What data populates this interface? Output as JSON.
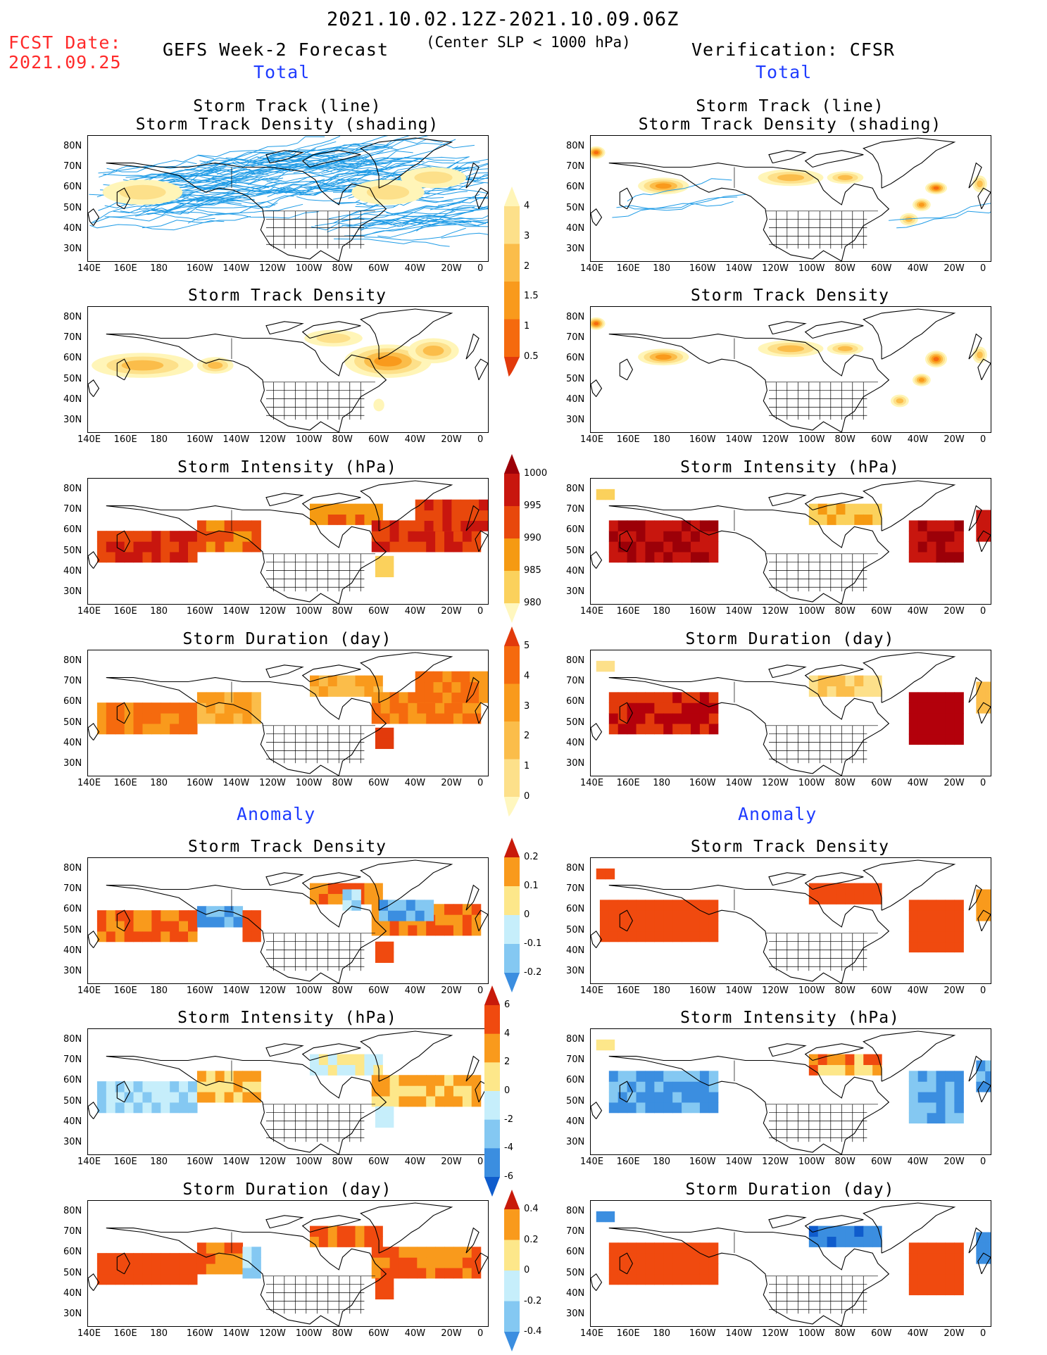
{
  "header": {
    "fcst_label": "FCST Date:",
    "fcst_date": "2021.09.25",
    "period": "2021.10.02.12Z-2021.10.09.06Z",
    "model": "GEFS Week-2 Forecast",
    "criterion": "(Center SLP < 1000 hPa)",
    "verification": "Verification: CFSR",
    "total_left": "Total",
    "total_right": "Total",
    "anomaly_left": "Anomaly",
    "anomaly_right": "Anomaly"
  },
  "panel_titles": {
    "track_line": "Storm Track (line)",
    "track_shading": "Storm Track Density (shading)",
    "density": "Storm Track Density",
    "intensity": "Storm Intensity (hPa)",
    "duration": "Storm Duration (day)"
  },
  "axes": {
    "lon_ticks": [
      "140E",
      "160E",
      "180",
      "160W",
      "140W",
      "120W",
      "100W",
      "80W",
      "60W",
      "40W",
      "20W",
      "0"
    ],
    "lat_ticks": [
      "80N",
      "70N",
      "60N",
      "50N",
      "40N",
      "30N"
    ]
  },
  "colors": {
    "reds": [
      "#fff7bf",
      "#fde08a",
      "#fbbd4a",
      "#f99a1c",
      "#f56a0e",
      "#e23a0b",
      "#b3000b"
    ],
    "intensity": [
      "#fff7bf",
      "#fbd15c",
      "#f59a12",
      "#e8480c",
      "#c8160e",
      "#9c0008"
    ],
    "anom_pos": [
      "#fde78a",
      "#f99a1c",
      "#f04a0f",
      "#c81a0a"
    ],
    "anom_neg": [
      "#c6eefb",
      "#84c8f2",
      "#3b8ee0",
      "#0f5ccc"
    ],
    "track": "#1e9be6",
    "land": "#000000"
  },
  "colorbars": {
    "density": {
      "labels": [
        "4",
        "3",
        "2",
        "1.5",
        "1",
        "0.5"
      ]
    },
    "intensity": {
      "labels": [
        "1000",
        "995",
        "990",
        "985",
        "980"
      ]
    },
    "duration": {
      "labels": [
        "5",
        "4",
        "3",
        "2",
        "1",
        "0"
      ]
    },
    "density_anom": {
      "labels": [
        "0.2",
        "0.1",
        "0",
        "-0.1",
        "-0.2"
      ]
    },
    "intensity_anom": {
      "labels": [
        "6",
        "4",
        "2",
        "0",
        "-2",
        "-4",
        "-6"
      ]
    },
    "duration_anom": {
      "labels": [
        "0.4",
        "0.2",
        "0",
        "-0.2",
        "-0.4"
      ]
    }
  }
}
